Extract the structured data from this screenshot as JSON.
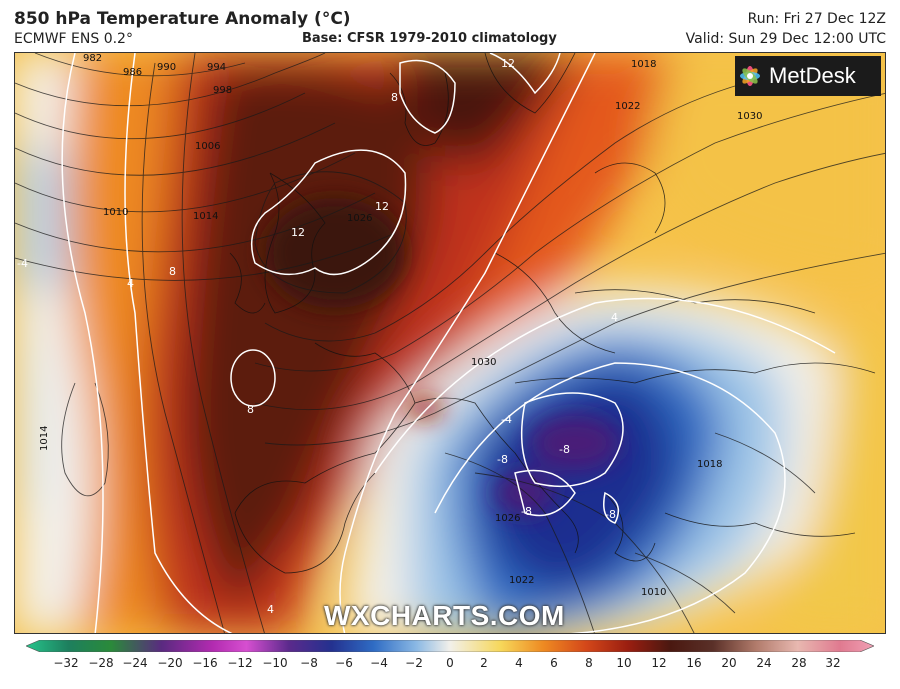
{
  "header": {
    "title": "850 hPa Temperature Anomaly (°C)",
    "model": "ECMWF ENS 0.2°",
    "base": "Base: CFSR 1979-2010 climatology",
    "run": "Run: Fri 27 Dec 12Z",
    "valid": "Valid: Sun 29 Dec 12:00 UTC"
  },
  "logo": {
    "text": "MetDesk",
    "icon": "metdesk-flower-icon"
  },
  "watermark": "WXCHARTS.COM",
  "isobar_labels": [
    {
      "text": "982"
    },
    {
      "text": "986"
    },
    {
      "text": "990"
    },
    {
      "text": "994"
    },
    {
      "text": "998"
    },
    {
      "text": "1006"
    },
    {
      "text": "1010"
    },
    {
      "text": "1014"
    },
    {
      "text": "1018"
    },
    {
      "text": "1022"
    },
    {
      "text": "1026"
    },
    {
      "text": "1030"
    },
    {
      "text": "1014"
    },
    {
      "text": "1018"
    },
    {
      "text": "1010"
    },
    {
      "text": "1026"
    },
    {
      "text": "1022"
    },
    {
      "text": "1030"
    }
  ],
  "anomaly_labels": [
    {
      "text": "12"
    },
    {
      "text": "12"
    },
    {
      "text": "12"
    },
    {
      "text": "8"
    },
    {
      "text": "8"
    },
    {
      "text": "8"
    },
    {
      "text": "-4"
    },
    {
      "text": "4"
    },
    {
      "text": "-8"
    },
    {
      "text": "-8"
    },
    {
      "text": "-8"
    },
    {
      "text": "-8"
    },
    {
      "text": "4"
    },
    {
      "text": "-4"
    },
    {
      "text": "4"
    }
  ],
  "colorbar": {
    "ticks": [
      "−32",
      "−28",
      "−24",
      "−20",
      "−16",
      "−12",
      "−10",
      "−8",
      "−6",
      "−4",
      "−2",
      "0",
      "2",
      "4",
      "6",
      "8",
      "10",
      "12",
      "16",
      "20",
      "24",
      "28",
      "32"
    ]
  },
  "colors": {
    "deep_red": "#5a1a10",
    "red": "#b22a12",
    "orange": "#e8641c",
    "yellow": "#f6c840",
    "white": "#f4f1ea",
    "light_blue": "#a8cdea",
    "blue": "#2f6fc6",
    "dark_blue": "#1c2f8e",
    "purple": "#4a1d78"
  }
}
